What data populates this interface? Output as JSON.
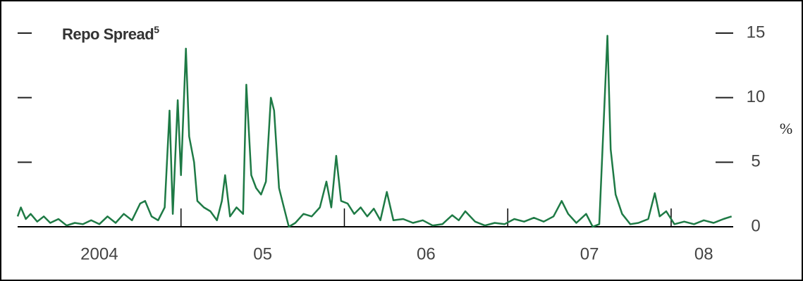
{
  "chart_data": {
    "type": "line",
    "title": "Repo Spread",
    "title_note": "5",
    "y_unit": "%",
    "color": "#1e7a45",
    "x": [
      2004.0,
      2004.02,
      2004.05,
      2004.08,
      2004.12,
      2004.16,
      2004.2,
      2004.25,
      2004.3,
      2004.35,
      2004.4,
      2004.45,
      2004.5,
      2004.55,
      2004.6,
      2004.65,
      2004.7,
      2004.75,
      2004.78,
      2004.82,
      2004.86,
      2004.9,
      2004.93,
      2004.95,
      2004.98,
      2005.0,
      2005.03,
      2005.05,
      2005.08,
      2005.1,
      2005.14,
      2005.18,
      2005.22,
      2005.25,
      2005.27,
      2005.3,
      2005.34,
      2005.38,
      2005.4,
      2005.43,
      2005.46,
      2005.49,
      2005.52,
      2005.55,
      2005.57,
      2005.6,
      2005.63,
      2005.66,
      2005.7,
      2005.75,
      2005.8,
      2005.85,
      2005.89,
      2005.92,
      2005.95,
      2005.98,
      2006.02,
      2006.06,
      2006.1,
      2006.14,
      2006.18,
      2006.22,
      2006.26,
      2006.3,
      2006.36,
      2006.42,
      2006.48,
      2006.54,
      2006.6,
      2006.66,
      2006.7,
      2006.74,
      2006.8,
      2006.86,
      2006.92,
      2006.98,
      2007.04,
      2007.1,
      2007.16,
      2007.22,
      2007.28,
      2007.33,
      2007.37,
      2007.42,
      2007.48,
      2007.52,
      2007.56,
      2007.61,
      2007.63,
      2007.66,
      2007.7,
      2007.75,
      2007.8,
      2007.86,
      2007.9,
      2007.93,
      2007.97,
      2008.02,
      2008.08,
      2008.14,
      2008.2,
      2008.26,
      2008.32,
      2008.37
    ],
    "values": [
      0.8,
      1.5,
      0.6,
      1.0,
      0.4,
      0.8,
      0.3,
      0.6,
      0.1,
      0.3,
      0.2,
      0.5,
      0.2,
      0.8,
      0.3,
      1.0,
      0.5,
      1.8,
      2.0,
      0.8,
      0.5,
      1.5,
      9.0,
      1.0,
      9.8,
      4.0,
      13.8,
      7.0,
      5.0,
      2.0,
      1.5,
      1.2,
      0.5,
      2.0,
      4.0,
      0.8,
      1.5,
      1.0,
      11.0,
      4.0,
      3.0,
      2.5,
      3.5,
      10.0,
      9.0,
      3.0,
      1.5,
      0.0,
      0.3,
      1.0,
      0.8,
      1.5,
      3.5,
      1.5,
      5.5,
      2.0,
      1.8,
      1.0,
      1.5,
      0.8,
      1.4,
      0.5,
      2.7,
      0.5,
      0.6,
      0.3,
      0.5,
      0.1,
      0.2,
      0.9,
      0.5,
      1.2,
      0.4,
      0.1,
      0.3,
      0.2,
      0.6,
      0.4,
      0.7,
      0.4,
      0.8,
      2.0,
      1.0,
      0.3,
      1.0,
      0.0,
      0.2,
      14.8,
      6.0,
      2.5,
      1.0,
      0.2,
      0.3,
      0.6,
      2.6,
      0.8,
      1.2,
      0.2,
      0.4,
      0.2,
      0.5,
      0.3,
      0.6,
      0.8
    ],
    "xlim": [
      2004,
      2008.38
    ],
    "xticks": [
      {
        "value": 2004.5,
        "label": "2004"
      },
      {
        "value": 2005.5,
        "label": "05"
      },
      {
        "value": 2006.5,
        "label": "06"
      },
      {
        "value": 2007.5,
        "label": "07"
      },
      {
        "value": 2008.2,
        "label": "08"
      }
    ],
    "xminor": [
      2005,
      2006,
      2007,
      2008
    ],
    "ylim": [
      0,
      15
    ],
    "yticks": [
      0,
      5,
      10,
      15
    ]
  }
}
